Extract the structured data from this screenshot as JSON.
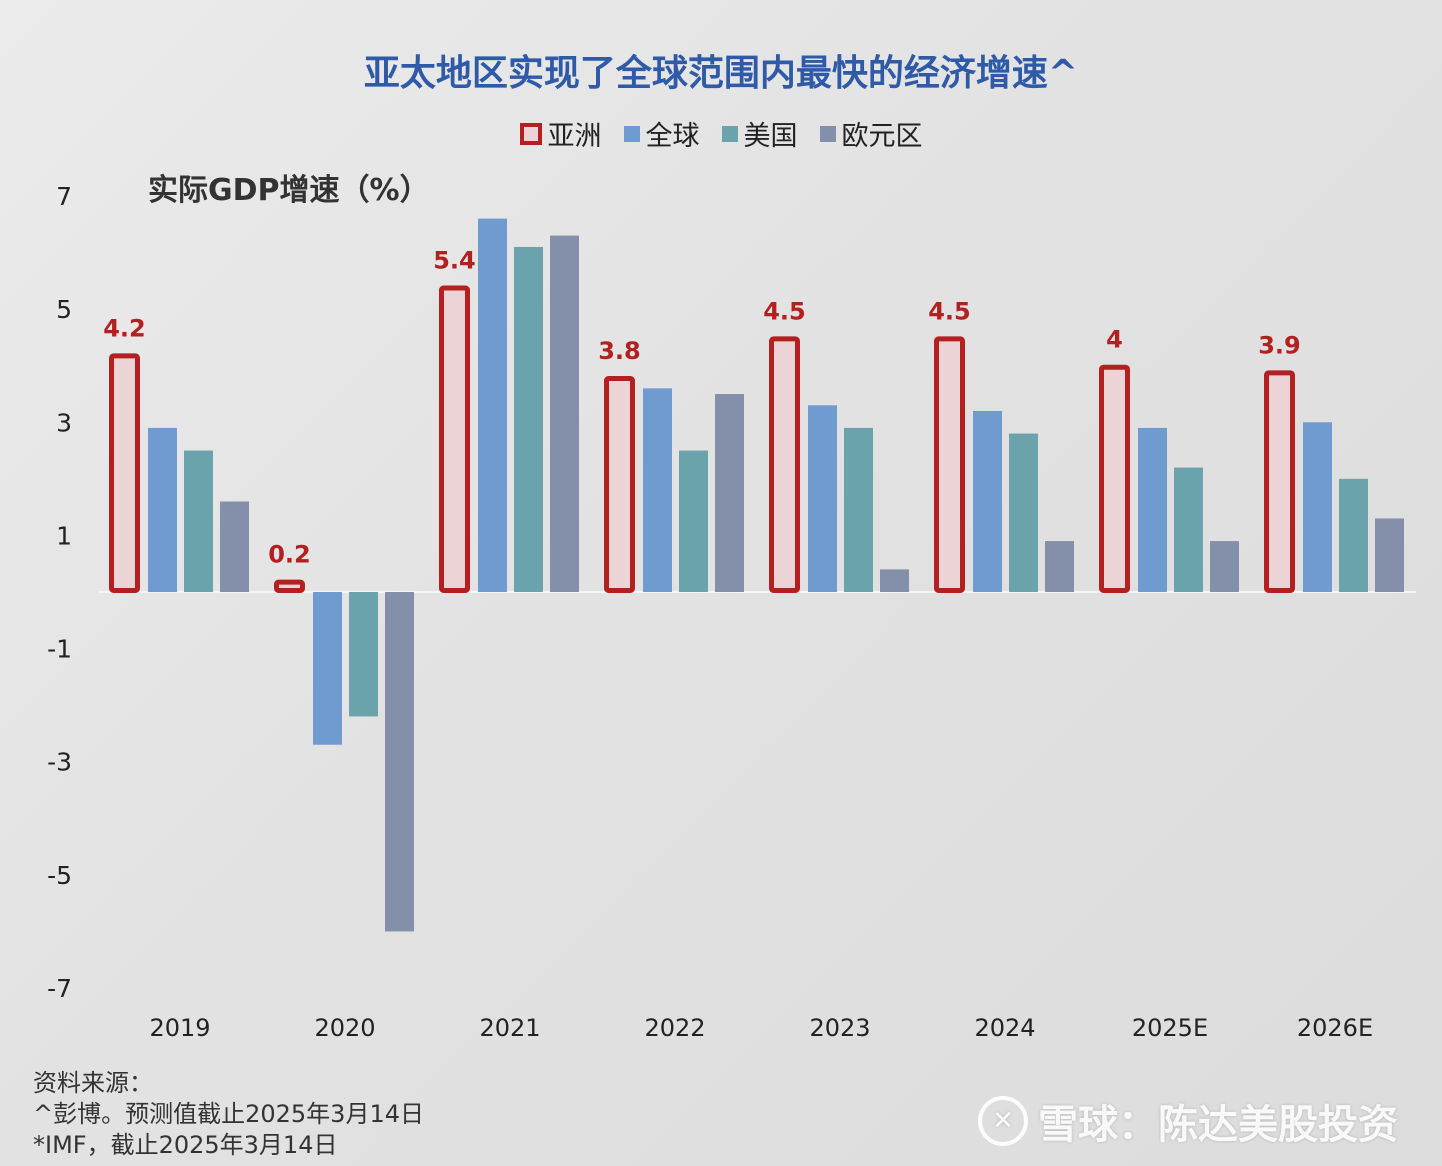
{
  "chart_data": {
    "type": "bar",
    "title": "亚太地区实现了全球范围内最快的经济增速^",
    "ylabel": "实际GDP增速（%）",
    "xlabel": "",
    "ylim": [
      -7,
      7
    ],
    "yticks": [
      7,
      5,
      3,
      1,
      -1,
      -3,
      -5,
      -7
    ],
    "categories": [
      "2019",
      "2020",
      "2021",
      "2022",
      "2023",
      "2024",
      "2025E",
      "2026E"
    ],
    "series": [
      {
        "name": "亚洲",
        "color": "#b3201f",
        "fill": "#ecd3d6",
        "outlined": true,
        "values": [
          4.2,
          0.2,
          5.4,
          3.8,
          4.5,
          4.5,
          4,
          3.9
        ],
        "labels": [
          "4.2",
          "0.2",
          "5.4",
          "3.8",
          "4.5",
          "4.5",
          "4",
          "3.9"
        ]
      },
      {
        "name": "全球",
        "color": "#6f9bd0",
        "values": [
          2.9,
          -2.7,
          6.6,
          3.6,
          3.3,
          3.2,
          2.9,
          3.0
        ]
      },
      {
        "name": "美国",
        "color": "#6aa3ab",
        "values": [
          2.5,
          -2.2,
          6.1,
          2.5,
          2.9,
          2.8,
          2.2,
          2.0
        ]
      },
      {
        "name": "欧元区",
        "color": "#8490aa",
        "values": [
          1.6,
          -6.0,
          6.3,
          3.5,
          0.4,
          0.9,
          0.9,
          1.3
        ]
      }
    ],
    "legend_position": "top-center",
    "grid": false
  },
  "source": {
    "heading": "资料来源：",
    "line1": "^彭博。预测值截止2025年3月14日",
    "line2": "*IMF，截止2025年3月14日"
  },
  "watermark": {
    "logo": "✕",
    "text": "雪球：陈达美股投资"
  }
}
